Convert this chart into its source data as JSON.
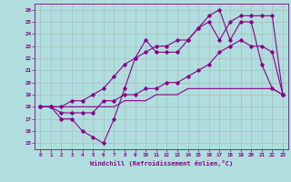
{
  "xlabel": "Windchill (Refroidissement éolien,°C)",
  "bg_color": "#b0dede",
  "line_color": "#880088",
  "grid_color": "#aaaaaa",
  "xlim": [
    -0.5,
    23.5
  ],
  "ylim": [
    14.5,
    26.5
  ],
  "yticks": [
    15,
    16,
    17,
    18,
    19,
    20,
    21,
    22,
    23,
    24,
    25,
    26
  ],
  "xticks": [
    0,
    1,
    2,
    3,
    4,
    5,
    6,
    7,
    8,
    9,
    10,
    11,
    12,
    13,
    14,
    15,
    16,
    17,
    18,
    19,
    20,
    21,
    22,
    23
  ],
  "line1_y": [
    18.0,
    18.0,
    17.0,
    17.0,
    16.0,
    15.5,
    15.0,
    17.0,
    19.5,
    22.0,
    23.5,
    22.5,
    22.5,
    22.5,
    23.5,
    24.5,
    25.5,
    26.0,
    23.5,
    25.0,
    25.0,
    21.5,
    19.5,
    19.0
  ],
  "line2_y": [
    18.0,
    18.0,
    17.5,
    17.5,
    17.5,
    17.5,
    18.5,
    18.5,
    19.0,
    19.0,
    19.5,
    19.5,
    20.0,
    20.0,
    20.5,
    21.0,
    21.5,
    22.5,
    23.0,
    23.5,
    23.0,
    23.0,
    22.5,
    19.0
  ],
  "line3_y": [
    18.0,
    18.0,
    18.0,
    18.5,
    18.5,
    19.0,
    19.5,
    20.5,
    21.5,
    22.0,
    22.5,
    23.0,
    23.0,
    23.5,
    23.5,
    24.5,
    25.0,
    23.5,
    25.0,
    25.5,
    25.5,
    25.5,
    25.5,
    19.0
  ],
  "line4_y": [
    18.0,
    18.0,
    18.0,
    18.0,
    18.0,
    18.0,
    18.0,
    18.0,
    18.5,
    18.5,
    18.5,
    19.0,
    19.0,
    19.0,
    19.5,
    19.5,
    19.5,
    19.5,
    19.5,
    19.5,
    19.5,
    19.5,
    19.5,
    19.0
  ]
}
